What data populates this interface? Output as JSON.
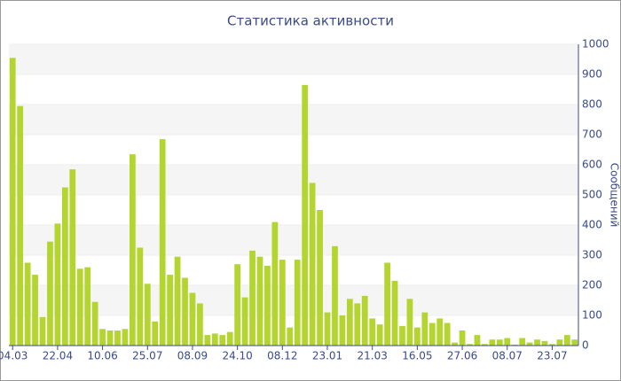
{
  "chart_data": {
    "type": "bar",
    "title": "Статистика активности",
    "y_axis_label": "Сообщений",
    "categories": [
      "04.03",
      null,
      null,
      null,
      null,
      null,
      "22.04",
      null,
      null,
      null,
      null,
      null,
      "10.06",
      null,
      null,
      null,
      null,
      null,
      "25.07",
      null,
      null,
      null,
      null,
      null,
      "08.09",
      null,
      null,
      null,
      null,
      null,
      "24.10",
      null,
      null,
      null,
      null,
      null,
      "08.12",
      null,
      null,
      null,
      null,
      null,
      "23.01",
      null,
      null,
      null,
      null,
      null,
      "21.03",
      null,
      null,
      null,
      null,
      null,
      "16.05",
      null,
      null,
      null,
      null,
      null,
      "27.06",
      null,
      null,
      null,
      null,
      null,
      "08.07",
      null,
      null,
      null,
      null,
      null,
      "23.07",
      null,
      null,
      null
    ],
    "values": [
      955,
      795,
      275,
      235,
      95,
      345,
      405,
      525,
      585,
      255,
      260,
      145,
      55,
      50,
      50,
      55,
      635,
      325,
      205,
      80,
      685,
      235,
      295,
      225,
      175,
      140,
      35,
      40,
      35,
      45,
      270,
      160,
      315,
      295,
      265,
      410,
      285,
      60,
      285,
      865,
      540,
      450,
      110,
      330,
      100,
      155,
      140,
      165,
      90,
      70,
      275,
      215,
      65,
      155,
      60,
      110,
      75,
      90,
      75,
      10,
      50,
      5,
      35,
      5,
      20,
      20,
      25,
      3,
      25,
      10,
      20,
      15,
      5,
      20,
      35,
      20
    ],
    "color": "#b4d52f",
    "ylim": [
      0,
      1000
    ],
    "yticks": [
      0,
      100,
      200,
      300,
      400,
      500,
      600,
      700,
      800,
      900,
      1000
    ],
    "grid": true
  }
}
